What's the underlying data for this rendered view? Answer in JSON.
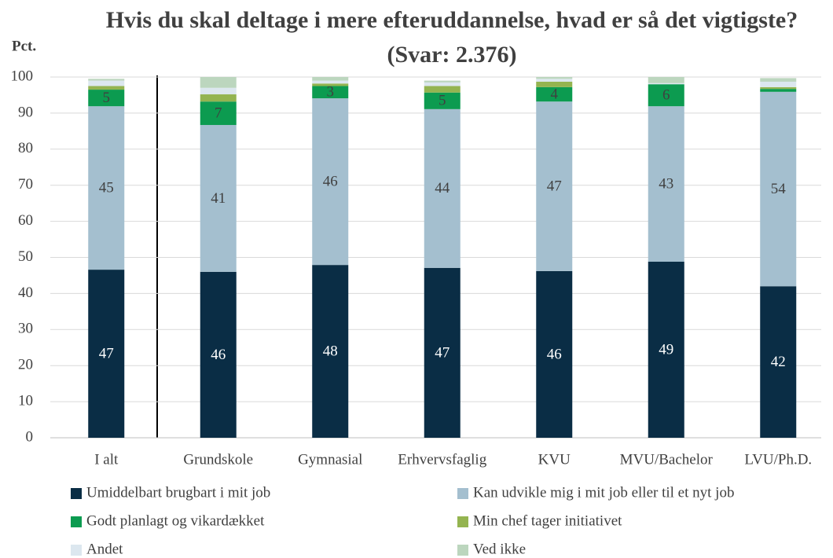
{
  "chart_data": {
    "type": "stacked-bar",
    "title": "Hvis du skal deltage i mere efteruddannelse, hvad er så det vigtigste? (Svar: 2.376)",
    "y_label": "Pct.",
    "categories": [
      "I alt",
      "Grundskole",
      "Gymnasial",
      "Erhvervsfaglig",
      "KVU",
      "MVU/Bachelor",
      "LVU/Ph.D."
    ],
    "series": [
      {
        "name": "Umiddelbart brugbart i mit job",
        "color": "#0a2d45",
        "values": [
          46.6,
          46.0,
          47.9,
          47.1,
          46.2,
          48.8,
          42.0
        ],
        "value_labels": [
          "47",
          "46",
          "48",
          "47",
          "46",
          "49",
          "42"
        ]
      },
      {
        "name": "Kan udvikle mig i mit job eller til et nyt job",
        "color": "#a4bfcf",
        "values": [
          45.3,
          40.7,
          46.2,
          44.0,
          47.0,
          43.1,
          53.9
        ],
        "value_labels": [
          "45",
          "41",
          "46",
          "44",
          "47",
          "43",
          "54"
        ]
      },
      {
        "name": "Godt planlagt og vikardækket",
        "color": "#0c9b50",
        "values": [
          4.6,
          6.5,
          3.4,
          4.6,
          4.0,
          6.1,
          0.8
        ],
        "value_labels": [
          "5",
          "7",
          "3",
          "5",
          "4",
          "6",
          null
        ]
      },
      {
        "name": "Min chef tager initiativet",
        "color": "#94b450",
        "values": [
          1.0,
          2.0,
          0.7,
          1.8,
          1.5,
          0.0,
          0.5
        ]
      },
      {
        "name": "Andet",
        "color": "#dce7ef",
        "values": [
          1.5,
          1.8,
          0.8,
          1.0,
          0.8,
          0.3,
          1.5
        ]
      },
      {
        "name": "Ved ikke",
        "color": "#bcd6be",
        "values": [
          0.5,
          3.0,
          1.0,
          0.5,
          0.5,
          1.7,
          1.0
        ]
      }
    ],
    "ylim": [
      0,
      100
    ],
    "yticks": [
      0,
      10,
      20,
      30,
      40,
      50,
      60,
      70,
      80,
      90,
      100
    ],
    "grid": true
  }
}
